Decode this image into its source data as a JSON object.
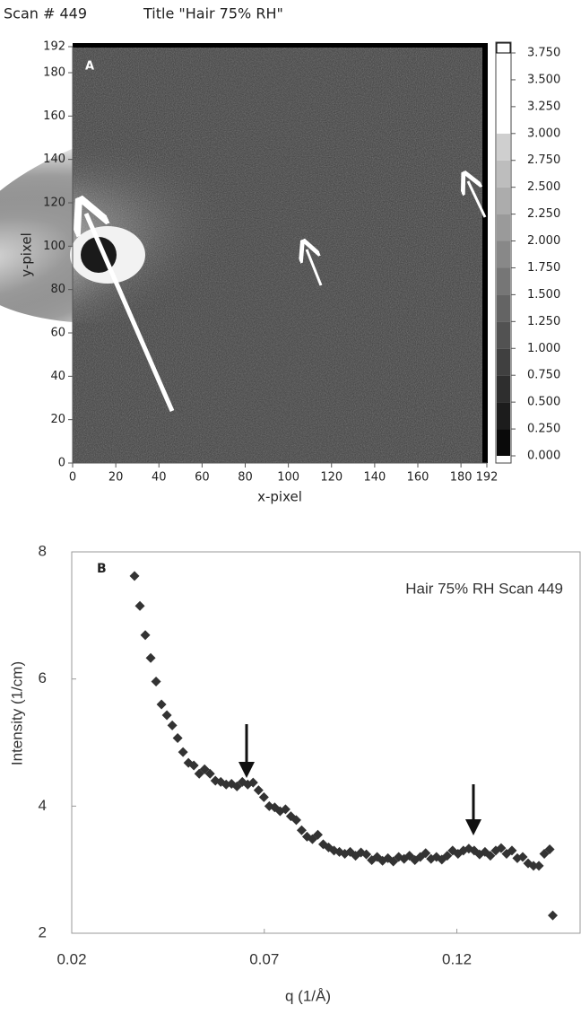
{
  "chart_data": [
    {
      "type": "heatmap",
      "title": "Scan # 449",
      "subtitle": "Title \"Hair 75% RH\"",
      "panel_label": "A",
      "x_label": "x-pixel",
      "y_label": "y-pixel",
      "xlim": [
        0,
        192
      ],
      "ylim": [
        0,
        192
      ],
      "xticks": [
        0,
        20,
        40,
        60,
        80,
        100,
        120,
        140,
        160,
        180,
        192
      ],
      "yticks": [
        0,
        20,
        40,
        60,
        80,
        100,
        120,
        140,
        160,
        180,
        192
      ],
      "colorbar_lim": [
        0,
        3.75
      ],
      "colorbar_ticks": [
        {
          "value": 3.75,
          "label": "3.750"
        },
        {
          "value": 3.5,
          "label": "3.500"
        },
        {
          "value": 3.25,
          "label": "3.250"
        },
        {
          "value": 3,
          "label": "3.000"
        },
        {
          "value": 2.75,
          "label": "2.750"
        },
        {
          "value": 2.5,
          "label": "2.500"
        },
        {
          "value": 2.25,
          "label": "2.250"
        },
        {
          "value": 2,
          "label": "2.000"
        },
        {
          "value": 1.75,
          "label": "1.750"
        },
        {
          "value": 1.5,
          "label": "1.500"
        },
        {
          "value": 1.25,
          "label": "1.250"
        },
        {
          "value": 1,
          "label": "1.000"
        },
        {
          "value": 0.75,
          "label": "0.750"
        },
        {
          "value": 0.5,
          "label": "0.500"
        },
        {
          "value": 0.25,
          "label": "0.250"
        },
        {
          "value": 0,
          "label": "0.000"
        }
      ]
    },
    {
      "type": "scatter",
      "panel_label": "B",
      "annotation": "Hair 75% RH Scan 449",
      "x_label": "q (1/Å)",
      "y_label": "Intensity (1/cm)",
      "color": "#333333",
      "xlim": [
        0.02,
        0.152
      ],
      "ylim": [
        2,
        8
      ],
      "xticks": [
        0.02,
        0.07,
        0.12
      ],
      "yticks": [
        2,
        4,
        6,
        8
      ],
      "x": [
        0.0363,
        0.0377,
        0.0391,
        0.0405,
        0.0419,
        0.0433,
        0.0447,
        0.0461,
        0.0475,
        0.0489,
        0.0503,
        0.0517,
        0.0531,
        0.0545,
        0.0559,
        0.0573,
        0.0587,
        0.0601,
        0.0615,
        0.0629,
        0.0643,
        0.0657,
        0.0671,
        0.0685,
        0.0699,
        0.0713,
        0.0727,
        0.0741,
        0.0755,
        0.0769,
        0.0783,
        0.0797,
        0.0811,
        0.0825,
        0.0839,
        0.0853,
        0.0867,
        0.0881,
        0.0895,
        0.0909,
        0.0923,
        0.0937,
        0.0951,
        0.0965,
        0.0979,
        0.0993,
        0.1007,
        0.1021,
        0.1035,
        0.1049,
        0.1063,
        0.1077,
        0.1091,
        0.1105,
        0.1119,
        0.1133,
        0.1147,
        0.1161,
        0.1175,
        0.1189,
        0.1203,
        0.1217,
        0.1231,
        0.1245,
        0.1259,
        0.1273,
        0.1287,
        0.1301,
        0.1315,
        0.1329,
        0.1343,
        0.1357,
        0.1371,
        0.1385,
        0.1399,
        0.1413,
        0.1427,
        0.1441,
        0.1449
      ],
      "values": [
        7.62,
        7.15,
        6.69,
        6.33,
        5.96,
        5.6,
        5.43,
        5.27,
        5.07,
        4.85,
        4.68,
        4.64,
        4.51,
        4.58,
        4.51,
        4.4,
        4.38,
        4.34,
        4.35,
        4.31,
        4.38,
        4.34,
        4.37,
        4.25,
        4.14,
        4.0,
        3.98,
        3.92,
        3.95,
        3.84,
        3.78,
        3.62,
        3.52,
        3.48,
        3.55,
        3.4,
        3.35,
        3.3,
        3.28,
        3.25,
        3.28,
        3.22,
        3.27,
        3.24,
        3.15,
        3.2,
        3.14,
        3.18,
        3.13,
        3.2,
        3.17,
        3.22,
        3.15,
        3.2,
        3.26,
        3.17,
        3.2,
        3.16,
        3.22,
        3.3,
        3.25,
        3.3,
        3.33,
        3.3,
        3.24,
        3.28,
        3.22,
        3.3,
        3.34,
        3.25,
        3.3,
        3.18,
        3.2,
        3.1,
        3.06,
        3.06,
        3.25,
        3.32,
        2.28
      ]
    }
  ]
}
